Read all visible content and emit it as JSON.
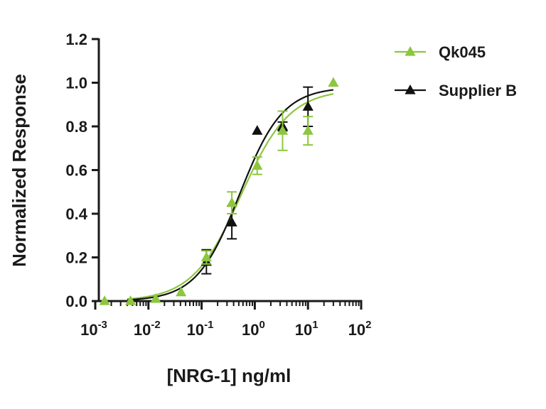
{
  "chart_data": {
    "type": "scatter",
    "title": "",
    "xlabel": "[NRG-1] ng/ml",
    "ylabel": "Normalized Response",
    "xscale": "log",
    "xlim": [
      0.001,
      100
    ],
    "ylim": [
      0.0,
      1.2
    ],
    "x_tick_values": [
      0.001,
      0.01,
      0.1,
      1,
      10,
      100
    ],
    "x_tick_labels": [
      {
        "base": "10",
        "exp": "-3"
      },
      {
        "base": "10",
        "exp": "-2"
      },
      {
        "base": "10",
        "exp": "-1"
      },
      {
        "base": "10",
        "exp": "0"
      },
      {
        "base": "10",
        "exp": "1"
      },
      {
        "base": "10",
        "exp": "2"
      }
    ],
    "y_tick_values": [
      0.0,
      0.2,
      0.4,
      0.6,
      0.8,
      1.0,
      1.2
    ],
    "y_tick_labels": [
      "0.0",
      "0.2",
      "0.4",
      "0.6",
      "0.8",
      "1.0",
      "1.2"
    ],
    "grid": false,
    "legend_position": "top-right, outside plot",
    "series": [
      {
        "name": "Qk045",
        "color": "#8dc63f",
        "marker": "triangle",
        "points": [
          {
            "x": 0.0015,
            "y": 0.0
          },
          {
            "x": 0.0046,
            "y": 0.0
          },
          {
            "x": 0.0137,
            "y": 0.01
          },
          {
            "x": 0.041,
            "y": 0.04
          },
          {
            "x": 0.123,
            "y": 0.2,
            "err": 0.03
          },
          {
            "x": 0.37,
            "y": 0.45,
            "err": 0.05
          },
          {
            "x": 1.11,
            "y": 0.62,
            "err": 0.04
          },
          {
            "x": 3.33,
            "y": 0.78,
            "err": 0.09
          },
          {
            "x": 10.0,
            "y": 0.78,
            "err": 0.065
          },
          {
            "x": 30.0,
            "y": 1.0
          }
        ],
        "fit": {
          "bottom": 0.0,
          "top": 0.97,
          "ec50": 0.55,
          "hill": 0.95
        }
      },
      {
        "name": "Supplier B",
        "color": "#111111",
        "marker": "triangle",
        "points": [
          {
            "x": 0.123,
            "y": 0.18,
            "err": 0.055
          },
          {
            "x": 0.37,
            "y": 0.36,
            "err": 0.075
          },
          {
            "x": 1.11,
            "y": 0.78
          },
          {
            "x": 3.33,
            "y": 0.8,
            "err": 0.02
          },
          {
            "x": 10.0,
            "y": 0.89,
            "err": 0.09
          }
        ],
        "fit": {
          "bottom": 0.0,
          "top": 0.98,
          "ec50": 0.52,
          "hill": 1.07
        }
      }
    ]
  }
}
